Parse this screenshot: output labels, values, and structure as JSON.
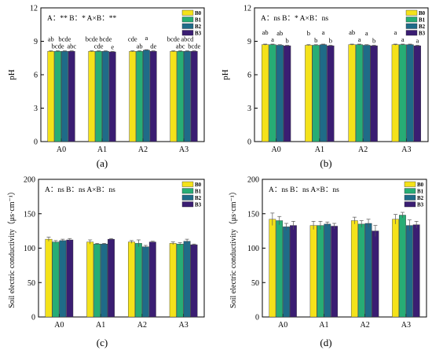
{
  "colors": {
    "B0": "#f4e21a",
    "B1": "#27ad75",
    "B2": "#1f6b88",
    "B3": "#3a1d72"
  },
  "chart_data": [
    {
      "id": "a",
      "type": "bar",
      "panel_label": "(a)",
      "categories": [
        "A0",
        "A1",
        "A2",
        "A3"
      ],
      "series": [
        {
          "name": "B0",
          "values": [
            8.1,
            8.1,
            8.1,
            8.1
          ]
        },
        {
          "name": "B1",
          "values": [
            8.1,
            8.1,
            8.1,
            8.1
          ]
        },
        {
          "name": "B2",
          "values": [
            8.1,
            8.1,
            8.2,
            8.1
          ]
        },
        {
          "name": "B3",
          "values": [
            8.1,
            8.05,
            8.1,
            8.1
          ]
        }
      ],
      "errors": [
        [
          0.05,
          0.05,
          0.05,
          0.05
        ],
        [
          0.05,
          0.05,
          0.05,
          0.05
        ],
        [
          0.05,
          0.05,
          0.05,
          0.05
        ],
        [
          0.05,
          0.05,
          0.05,
          0.05
        ]
      ],
      "sig_letters": [
        [
          "ab",
          "bcde",
          "cde",
          "bcde"
        ],
        [
          "bcde",
          "cde",
          "ab",
          "abc"
        ],
        [
          "bcde",
          "bcde",
          "a",
          "abcd"
        ],
        [
          "abc",
          "e",
          "de",
          "bcde"
        ]
      ],
      "annotation": "A：** B：* A×B：**",
      "xlabel": "",
      "ylabel": "pH",
      "ylim": [
        0,
        12
      ],
      "yticks": [
        0,
        3,
        6,
        9,
        12
      ],
      "legend_position": "top-right"
    },
    {
      "id": "b",
      "type": "bar",
      "panel_label": "(b)",
      "categories": [
        "A0",
        "A1",
        "A2",
        "A3"
      ],
      "series": [
        {
          "name": "B0",
          "values": [
            8.7,
            8.65,
            8.7,
            8.7
          ]
        },
        {
          "name": "B1",
          "values": [
            8.7,
            8.65,
            8.7,
            8.7
          ]
        },
        {
          "name": "B2",
          "values": [
            8.65,
            8.7,
            8.65,
            8.7
          ]
        },
        {
          "name": "B3",
          "values": [
            8.6,
            8.6,
            8.6,
            8.6
          ]
        }
      ],
      "errors": [
        [
          0.05,
          0.05,
          0.05,
          0.05
        ],
        [
          0.05,
          0.05,
          0.05,
          0.05
        ],
        [
          0.05,
          0.05,
          0.05,
          0.05
        ],
        [
          0.05,
          0.05,
          0.05,
          0.05
        ]
      ],
      "sig_letters": [
        [
          "ab",
          "b",
          "ab",
          "a"
        ],
        [
          "a",
          "b",
          "a",
          "a"
        ],
        [
          "ab",
          "a",
          "a",
          "a"
        ],
        [
          "b",
          "b",
          "b",
          "a"
        ]
      ],
      "annotation": "A：ns B：* A×B：ns",
      "xlabel": "",
      "ylabel": "pH",
      "ylim": [
        0,
        12
      ],
      "yticks": [
        0,
        3,
        6,
        9,
        12
      ],
      "legend_position": "top-right"
    },
    {
      "id": "c",
      "type": "bar",
      "panel_label": "(c)",
      "categories": [
        "A0",
        "A1",
        "A2",
        "A3"
      ],
      "series": [
        {
          "name": "B0",
          "values": [
            113,
            109,
            109,
            107
          ]
        },
        {
          "name": "B1",
          "values": [
            109,
            106,
            107,
            106
          ]
        },
        {
          "name": "B2",
          "values": [
            111,
            106,
            102,
            110
          ]
        },
        {
          "name": "B3",
          "values": [
            112,
            113,
            109,
            105
          ]
        }
      ],
      "errors": [
        [
          3,
          3,
          2,
          2
        ],
        [
          2,
          1,
          5,
          2
        ],
        [
          2,
          1,
          2,
          3
        ],
        [
          2,
          1,
          1,
          1
        ]
      ],
      "sig_letters": [],
      "annotation": "A：ns B：ns A×B：ns",
      "xlabel": "",
      "ylabel": "Soil electric conductivity（μs·cm⁻¹）",
      "ylim": [
        0,
        200
      ],
      "yticks": [
        0,
        50,
        100,
        150,
        200
      ],
      "legend_position": "top-right"
    },
    {
      "id": "d",
      "type": "bar",
      "panel_label": "(d)",
      "categories": [
        "A0",
        "A1",
        "A2",
        "A3"
      ],
      "series": [
        {
          "name": "B0",
          "values": [
            142,
            133,
            140,
            142
          ]
        },
        {
          "name": "B1",
          "values": [
            140,
            133,
            135,
            148
          ]
        },
        {
          "name": "B2",
          "values": [
            131,
            135,
            136,
            133
          ]
        },
        {
          "name": "B3",
          "values": [
            133,
            132,
            125,
            134
          ]
        }
      ],
      "errors": [
        [
          9,
          6,
          5,
          7
        ],
        [
          6,
          6,
          5,
          4
        ],
        [
          5,
          3,
          6,
          8
        ],
        [
          6,
          4,
          8,
          5
        ]
      ],
      "sig_letters": [],
      "annotation": "A：ns B：ns A×B：ns",
      "xlabel": "",
      "ylabel": "Soil electric conductivity（μs·cm⁻¹）",
      "ylim": [
        0,
        200
      ],
      "yticks": [
        0,
        50,
        100,
        150,
        200
      ],
      "legend_position": "top-right"
    }
  ]
}
